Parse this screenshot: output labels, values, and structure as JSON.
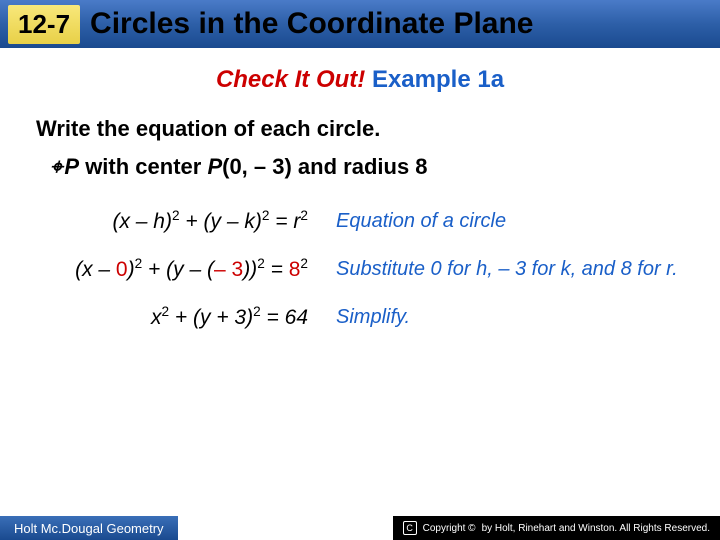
{
  "header": {
    "section_number": "12-7",
    "title": "Circles in the Coordinate Plane"
  },
  "subtitle": {
    "red": "Check It Out!",
    "blue": "Example 1a"
  },
  "instruction": "Write the equation of each circle.",
  "problem": {
    "marker": "⌖",
    "text_before_italic1": "",
    "circle_letter": "P",
    "mid1": " with center ",
    "center_letter": "P",
    "after_center": "(0, – 3) and radius 8"
  },
  "rows": [
    {
      "left_html": "(<i>x – h</i>)<sup>2</sup> + (<i>y – k</i>)<sup>2</sup> = <i>r</i><sup>2</sup>",
      "right": "Equation of a circle"
    },
    {
      "left_html": "(<i>x</i> – <span class='sub-red'>0</span>)<sup>2</sup> + (<i>y</i> – (<span class='sub-red'>– 3</span>))<sup>2</sup> = <span class='sub-red'>8</span><sup>2</sup>",
      "right": "Substitute 0 for h, – 3 for k, and 8 for r."
    },
    {
      "left_html": "<i>x</i><sup>2</sup> + (<i>y</i> + 3)<sup>2</sup> = 64",
      "right": "Simplify."
    }
  ],
  "footer": {
    "left": "Holt Mc.Dougal Geometry",
    "right": "by Holt, Rinehart and Winston. All Rights Reserved.",
    "copyright_word": "Copyright ©"
  }
}
